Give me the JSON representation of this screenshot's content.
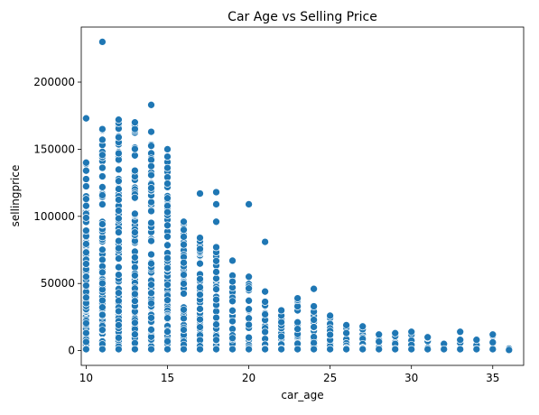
{
  "chart_data": {
    "type": "scatter",
    "title": "Car Age vs Selling Price",
    "xlabel": "car_age",
    "ylabel": "sellingprice",
    "xlim": [
      9.7,
      36.9
    ],
    "ylim": [
      -11000,
      241000
    ],
    "xticks": [
      10,
      15,
      20,
      25,
      30,
      35
    ],
    "yticks": [
      0,
      50000,
      100000,
      150000,
      200000
    ],
    "grid": false,
    "legend": "none",
    "marker_color": "#1f77b4",
    "series": [
      {
        "columns": [
          {
            "x": 10,
            "min": 1000,
            "max": 140000,
            "outliers": [
              173000
            ]
          },
          {
            "x": 11,
            "min": 1000,
            "max": 165000,
            "outliers": [
              230000
            ]
          },
          {
            "x": 12,
            "min": 1000,
            "max": 172000,
            "outliers": []
          },
          {
            "x": 13,
            "min": 1000,
            "max": 170000,
            "outliers": []
          },
          {
            "x": 14,
            "min": 1000,
            "max": 163000,
            "outliers": [
              183000
            ]
          },
          {
            "x": 15,
            "min": 1000,
            "max": 150000,
            "outliers": []
          },
          {
            "x": 16,
            "min": 1000,
            "max": 96000,
            "outliers": []
          },
          {
            "x": 17,
            "min": 1000,
            "max": 84000,
            "outliers": [
              117000
            ]
          },
          {
            "x": 18,
            "min": 1000,
            "max": 77000,
            "outliers": [
              96000,
              109000,
              118000
            ]
          },
          {
            "x": 19,
            "min": 1000,
            "max": 67000,
            "outliers": []
          },
          {
            "x": 20,
            "min": 1000,
            "max": 55000,
            "outliers": [
              109000
            ]
          },
          {
            "x": 21,
            "min": 1000,
            "max": 44000,
            "outliers": [
              81000
            ]
          },
          {
            "x": 22,
            "min": 1000,
            "max": 30000,
            "outliers": []
          },
          {
            "x": 23,
            "min": 1000,
            "max": 39000,
            "outliers": []
          },
          {
            "x": 24,
            "min": 1000,
            "max": 33000,
            "outliers": [
              46000
            ]
          },
          {
            "x": 25,
            "min": 1000,
            "max": 26000,
            "outliers": []
          },
          {
            "x": 26,
            "min": 1000,
            "max": 19000,
            "outliers": []
          },
          {
            "x": 27,
            "min": 1000,
            "max": 18000,
            "outliers": []
          },
          {
            "x": 28,
            "min": 1000,
            "max": 12000,
            "outliers": []
          },
          {
            "x": 29,
            "min": 1000,
            "max": 13000,
            "outliers": []
          },
          {
            "x": 30,
            "min": 1000,
            "max": 14000,
            "outliers": []
          },
          {
            "x": 31,
            "min": 1000,
            "max": 10000,
            "outliers": []
          },
          {
            "x": 32,
            "min": 1000,
            "max": 5000,
            "outliers": []
          },
          {
            "x": 33,
            "min": 1000,
            "max": 8000,
            "outliers": [
              14000
            ]
          },
          {
            "x": 34,
            "min": 1000,
            "max": 8000,
            "outliers": []
          },
          {
            "x": 35,
            "min": 1000,
            "max": 12000,
            "outliers": []
          },
          {
            "x": 36,
            "min": 500,
            "max": 1500,
            "outliers": []
          }
        ]
      }
    ]
  }
}
